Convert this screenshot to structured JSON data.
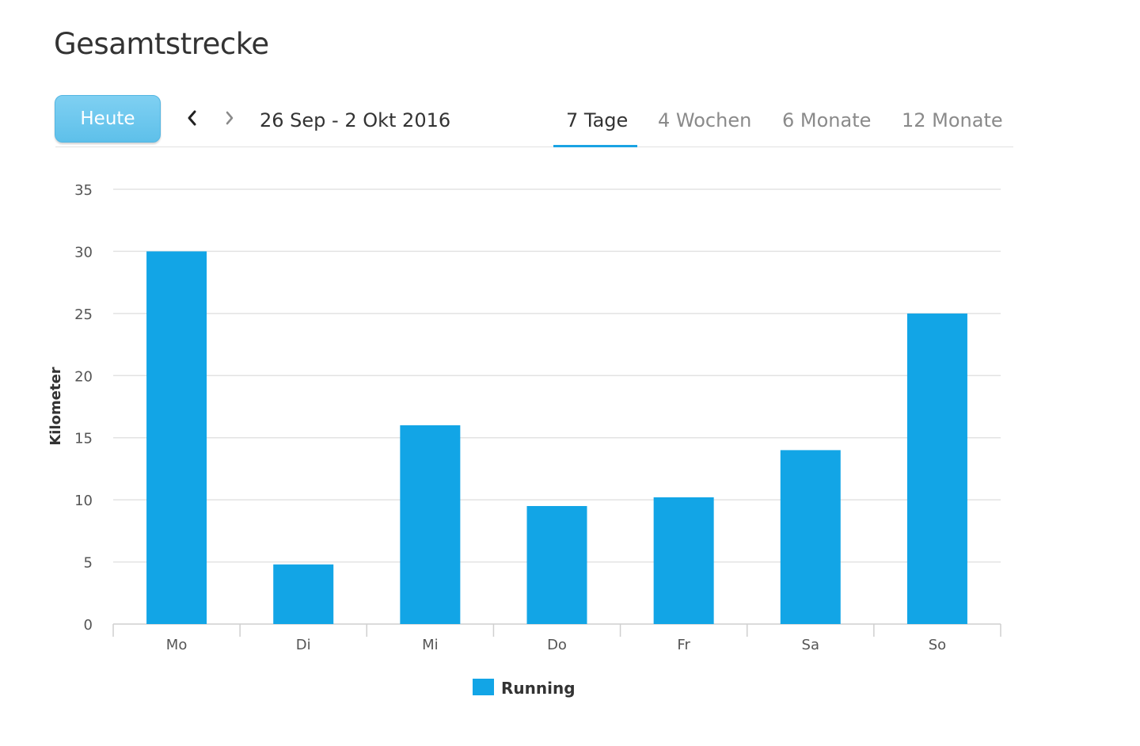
{
  "header": {
    "title": "Gesamtstrecke",
    "today_label": "Heute",
    "prev_icon": "chevron-left-icon",
    "next_icon": "chevron-right-icon",
    "date_range": "26 Sep - 2 Okt 2016"
  },
  "tabs": [
    {
      "label": "7 Tage",
      "active": true
    },
    {
      "label": "4 Wochen",
      "active": false
    },
    {
      "label": "6 Monate",
      "active": false
    },
    {
      "label": "12 Monate",
      "active": false
    }
  ],
  "colors": {
    "accent": "#1aa3e3",
    "bar": "#12a5e6",
    "button": "#6cc6ee"
  },
  "chart_data": {
    "type": "bar",
    "categories": [
      "Mo",
      "Di",
      "Mi",
      "Do",
      "Fr",
      "Sa",
      "So"
    ],
    "series": [
      {
        "name": "Running",
        "values": [
          30,
          4.8,
          16,
          9.5,
          10.2,
          14,
          25
        ]
      }
    ],
    "ylabel": "Kilometer",
    "ylim": [
      0,
      35
    ],
    "yticks": [
      0,
      5,
      10,
      15,
      20,
      25,
      30,
      35
    ],
    "grid": true,
    "legend": "bottom-center"
  }
}
